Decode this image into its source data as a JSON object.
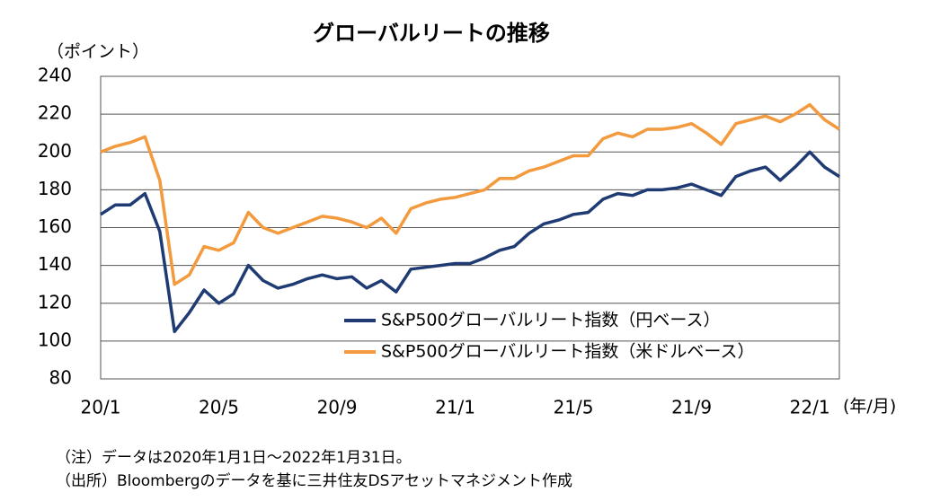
{
  "chart_data": {
    "type": "line",
    "title": "グローバルリートの推移",
    "y_axis_label": "（ポイント）",
    "x_axis_label": "(年/月)",
    "categories": [
      "20/1",
      null,
      null,
      null,
      null,
      null,
      null,
      null,
      "20/5",
      null,
      null,
      null,
      null,
      null,
      null,
      null,
      "20/9",
      null,
      null,
      null,
      null,
      null,
      null,
      null,
      "21/1",
      null,
      null,
      null,
      null,
      null,
      null,
      null,
      "21/5",
      null,
      null,
      null,
      null,
      null,
      null,
      null,
      "21/9",
      null,
      null,
      null,
      null,
      null,
      null,
      null,
      "22/1",
      null,
      null
    ],
    "series": [
      {
        "name": "S&P500グローバルリート指数（円ベース）",
        "color": "#1f3b73",
        "values": [
          167,
          172,
          172,
          178,
          158,
          105,
          115,
          127,
          120,
          125,
          140,
          132,
          128,
          130,
          133,
          135,
          133,
          134,
          128,
          132,
          126,
          138,
          139,
          140,
          141,
          141,
          144,
          148,
          150,
          157,
          162,
          164,
          167,
          168,
          175,
          178,
          177,
          180,
          180,
          181,
          183,
          180,
          177,
          187,
          190,
          192,
          185,
          192,
          200,
          192,
          187
        ]
      },
      {
        "name": "S&P500グローバルリート指数（米ドルベース）",
        "color": "#f39a3e",
        "values": [
          200,
          203,
          205,
          208,
          185,
          130,
          135,
          150,
          148,
          152,
          168,
          160,
          157,
          160,
          163,
          166,
          165,
          163,
          160,
          165,
          157,
          170,
          173,
          175,
          176,
          178,
          180,
          186,
          186,
          190,
          192,
          195,
          198,
          198,
          207,
          210,
          208,
          212,
          212,
          213,
          215,
          210,
          204,
          215,
          217,
          219,
          216,
          220,
          225,
          217,
          212
        ]
      }
    ],
    "ylim": [
      80,
      240
    ],
    "yticks": [
      80,
      100,
      120,
      140,
      160,
      180,
      200,
      220,
      240
    ],
    "grid": true,
    "legend": "lower right",
    "notes": [
      "（注）データは2020年1月1日～2022年1月31日。",
      "（出所）Bloombergのデータを基に三井住友DSアセットマネジメント作成"
    ]
  }
}
